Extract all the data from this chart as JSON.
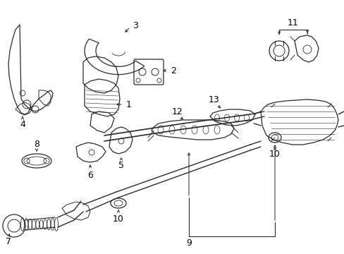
{
  "background": "#ffffff",
  "line_color": "#2a2a2a",
  "figsize": [
    4.89,
    3.6
  ],
  "dpi": 100,
  "xlim": [
    0,
    489
  ],
  "ylim": [
    0,
    360
  ],
  "components": {
    "label_fs": 9,
    "arrow_lw": 0.7,
    "part_lw": 0.9
  }
}
